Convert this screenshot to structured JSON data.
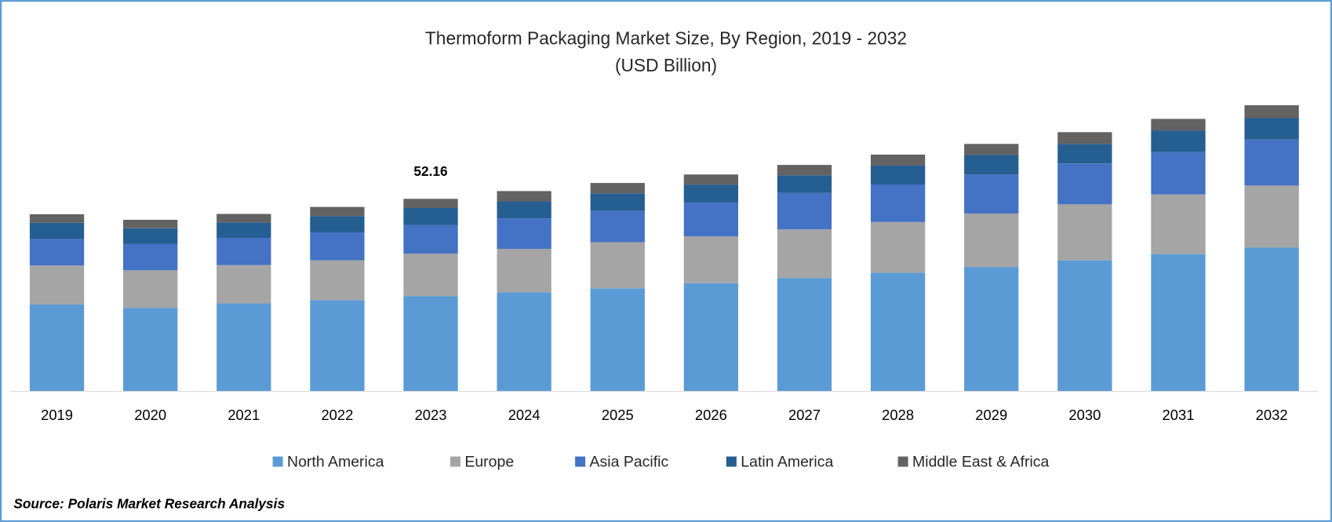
{
  "chart_data": {
    "type": "stacked-bar",
    "title": "Thermoform  Packaging Market Size, By Region, 2019 - 2032",
    "subtitle": "(USD Billion)",
    "xlabel": "",
    "ylabel": "",
    "categories": [
      "2019",
      "2020",
      "2021",
      "2022",
      "2023",
      "2024",
      "2025",
      "2026",
      "2027",
      "2028",
      "2029",
      "2030",
      "2031",
      "2032"
    ],
    "series": [
      {
        "name": "North America",
        "color": "#5B9BD5",
        "values": [
          23.5,
          22.6,
          23.8,
          24.7,
          25.8,
          26.8,
          27.9,
          29.3,
          30.7,
          32.1,
          33.7,
          35.5,
          37.2,
          39.0
        ]
      },
      {
        "name": "Europe",
        "color": "#A5A5A5",
        "values": [
          10.6,
          10.2,
          10.4,
          10.8,
          11.5,
          11.8,
          12.5,
          12.7,
          13.2,
          13.8,
          14.5,
          15.2,
          16.2,
          16.8
        ]
      },
      {
        "name": "Asia Pacific",
        "color": "#4472C4",
        "values": [
          7.2,
          7.2,
          7.4,
          7.6,
          7.8,
          8.3,
          8.5,
          9.2,
          9.9,
          10.2,
          10.6,
          11.1,
          11.5,
          12.5
        ]
      },
      {
        "name": "Latin America",
        "color": "#255E91",
        "values": [
          4.4,
          4.2,
          4.2,
          4.4,
          4.6,
          4.6,
          4.8,
          4.8,
          4.8,
          5.1,
          5.3,
          5.3,
          5.8,
          5.8
        ]
      },
      {
        "name": "Middle East & Africa",
        "color": "#636363",
        "values": [
          2.3,
          2.3,
          2.3,
          2.5,
          2.5,
          2.8,
          2.8,
          2.8,
          2.8,
          3.0,
          3.0,
          3.2,
          3.2,
          3.5
        ]
      }
    ],
    "annotations": [
      {
        "category": "2023",
        "label": "52.16"
      }
    ],
    "ylim": [
      0,
      78
    ],
    "grid": false,
    "legend": "bottom"
  },
  "source": "Source: Polaris Market Research Analysis",
  "border_color": "#5B9BD5"
}
